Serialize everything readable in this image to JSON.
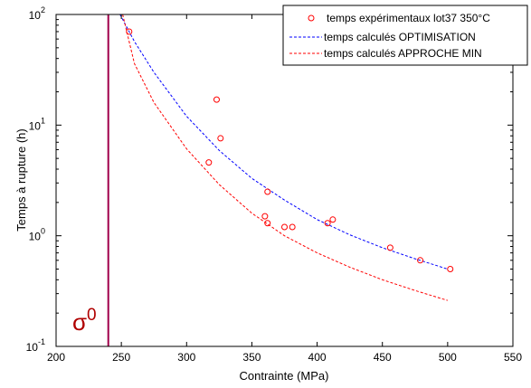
{
  "chart_data": {
    "type": "scatter",
    "xlabel": "Contrainte (MPa)",
    "ylabel": "Temps à rupture (h)",
    "xlim": [
      200,
      550
    ],
    "ylim": [
      0.1,
      100
    ],
    "yscale": "log",
    "grid": false,
    "legend_position": "top-right",
    "x_ticks": [
      "200",
      "250",
      "300",
      "350",
      "400",
      "450",
      "500",
      "550"
    ],
    "y_ticks": [
      {
        "base": "10",
        "exp": "-1",
        "value": 0.1
      },
      {
        "base": "10",
        "exp": "0",
        "value": 1
      },
      {
        "base": "10",
        "exp": "1",
        "value": 10
      },
      {
        "base": "10",
        "exp": "2",
        "value": 100
      }
    ],
    "series": [
      {
        "name": "temps expérimentaux lot37 350°C",
        "kind": "markers",
        "color": "#ff0000",
        "points": [
          {
            "x": 256,
            "y": 70
          },
          {
            "x": 323,
            "y": 17
          },
          {
            "x": 326,
            "y": 7.6
          },
          {
            "x": 317,
            "y": 4.6
          },
          {
            "x": 362,
            "y": 2.5
          },
          {
            "x": 360,
            "y": 1.5
          },
          {
            "x": 362,
            "y": 1.3
          },
          {
            "x": 375,
            "y": 1.2
          },
          {
            "x": 381,
            "y": 1.2
          },
          {
            "x": 408,
            "y": 1.3
          },
          {
            "x": 412,
            "y": 1.4
          },
          {
            "x": 456,
            "y": 0.78
          },
          {
            "x": 479,
            "y": 0.6
          },
          {
            "x": 502,
            "y": 0.5
          }
        ]
      },
      {
        "name": "temps calculés OPTIMISATION",
        "kind": "dashed-line",
        "color": "#0000ff",
        "points": [
          {
            "x": 249,
            "y": 100
          },
          {
            "x": 260,
            "y": 57
          },
          {
            "x": 275,
            "y": 30
          },
          {
            "x": 300,
            "y": 12
          },
          {
            "x": 325,
            "y": 5.9
          },
          {
            "x": 350,
            "y": 3.3
          },
          {
            "x": 375,
            "y": 2.1
          },
          {
            "x": 400,
            "y": 1.4
          },
          {
            "x": 425,
            "y": 1.02
          },
          {
            "x": 450,
            "y": 0.78
          },
          {
            "x": 475,
            "y": 0.62
          },
          {
            "x": 500,
            "y": 0.5
          }
        ]
      },
      {
        "name": "temps calculés APPROCHE MIN",
        "kind": "dashed-line",
        "color": "#ff0000",
        "points": [
          {
            "x": 251,
            "y": 100
          },
          {
            "x": 260,
            "y": 36
          },
          {
            "x": 275,
            "y": 16
          },
          {
            "x": 300,
            "y": 6.1
          },
          {
            "x": 325,
            "y": 2.9
          },
          {
            "x": 350,
            "y": 1.6
          },
          {
            "x": 375,
            "y": 1.0
          },
          {
            "x": 400,
            "y": 0.7
          },
          {
            "x": 425,
            "y": 0.52
          },
          {
            "x": 450,
            "y": 0.4
          },
          {
            "x": 475,
            "y": 0.32
          },
          {
            "x": 500,
            "y": 0.26
          }
        ]
      }
    ],
    "reference_line": {
      "x": 240,
      "color": "#a0004a"
    },
    "annotation": {
      "base": "σ",
      "sup": "0",
      "color": "#b00000"
    }
  }
}
